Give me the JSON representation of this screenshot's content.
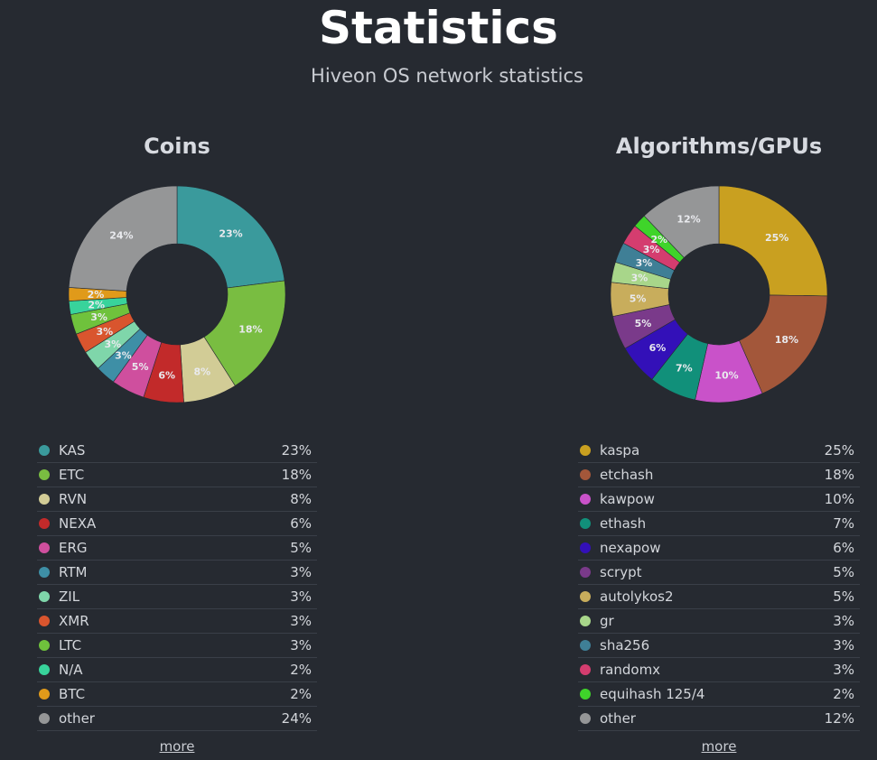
{
  "header": {
    "title": "Statistics",
    "subtitle": "Hiveon OS network statistics"
  },
  "more_label": "more",
  "chart_data": [
    {
      "type": "pie",
      "title": "Coins",
      "donut": true,
      "legend_position": "bottom",
      "series": [
        {
          "name": "KAS",
          "value": 23,
          "label": "23%",
          "color": "#3a9a9c"
        },
        {
          "name": "ETC",
          "value": 18,
          "label": "18%",
          "color": "#79bd41"
        },
        {
          "name": "RVN",
          "value": 8,
          "label": "8%",
          "color": "#d2cc96"
        },
        {
          "name": "NEXA",
          "value": 6,
          "label": "6%",
          "color": "#c22a2a"
        },
        {
          "name": "ERG",
          "value": 5,
          "label": "5%",
          "color": "#cf4f9e"
        },
        {
          "name": "RTM",
          "value": 3,
          "label": "3%",
          "color": "#3e8fa6"
        },
        {
          "name": "ZIL",
          "value": 3,
          "label": "3%",
          "color": "#7fd6aa"
        },
        {
          "name": "XMR",
          "value": 3,
          "label": "3%",
          "color": "#d9552e"
        },
        {
          "name": "LTC",
          "value": 3,
          "label": "3%",
          "color": "#6fc23c"
        },
        {
          "name": "N/A",
          "value": 2,
          "label": "2%",
          "color": "#38d39b"
        },
        {
          "name": "BTC",
          "value": 2,
          "label": "2%",
          "color": "#e09a1a"
        },
        {
          "name": "other",
          "value": 24,
          "label": "24%",
          "color": "#959697"
        }
      ]
    },
    {
      "type": "pie",
      "title": "Algorithms/GPUs",
      "donut": true,
      "legend_position": "bottom",
      "series": [
        {
          "name": "kaspa",
          "value": 25,
          "label": "25%",
          "color": "#c9a020"
        },
        {
          "name": "etchash",
          "value": 18,
          "label": "18%",
          "color": "#a3573a"
        },
        {
          "name": "kawpow",
          "value": 10,
          "label": "10%",
          "color": "#c952c9"
        },
        {
          "name": "ethash",
          "value": 7,
          "label": "7%",
          "color": "#11907a"
        },
        {
          "name": "nexapow",
          "value": 6,
          "label": "6%",
          "color": "#3310b8"
        },
        {
          "name": "scrypt",
          "value": 5,
          "label": "5%",
          "color": "#7a3a8a"
        },
        {
          "name": "autolykos2",
          "value": 5,
          "label": "5%",
          "color": "#c8ad5c"
        },
        {
          "name": "gr",
          "value": 3,
          "label": "3%",
          "color": "#a8d68a"
        },
        {
          "name": "sha256",
          "value": 3,
          "label": "3%",
          "color": "#3f7f96"
        },
        {
          "name": "randomx",
          "value": 3,
          "label": "3%",
          "color": "#d43d6f"
        },
        {
          "name": "equihash 125/4",
          "value": 2,
          "label": "2%",
          "color": "#3fd42a"
        },
        {
          "name": "other",
          "value": 12,
          "label": "12%",
          "color": "#959697"
        }
      ]
    }
  ]
}
